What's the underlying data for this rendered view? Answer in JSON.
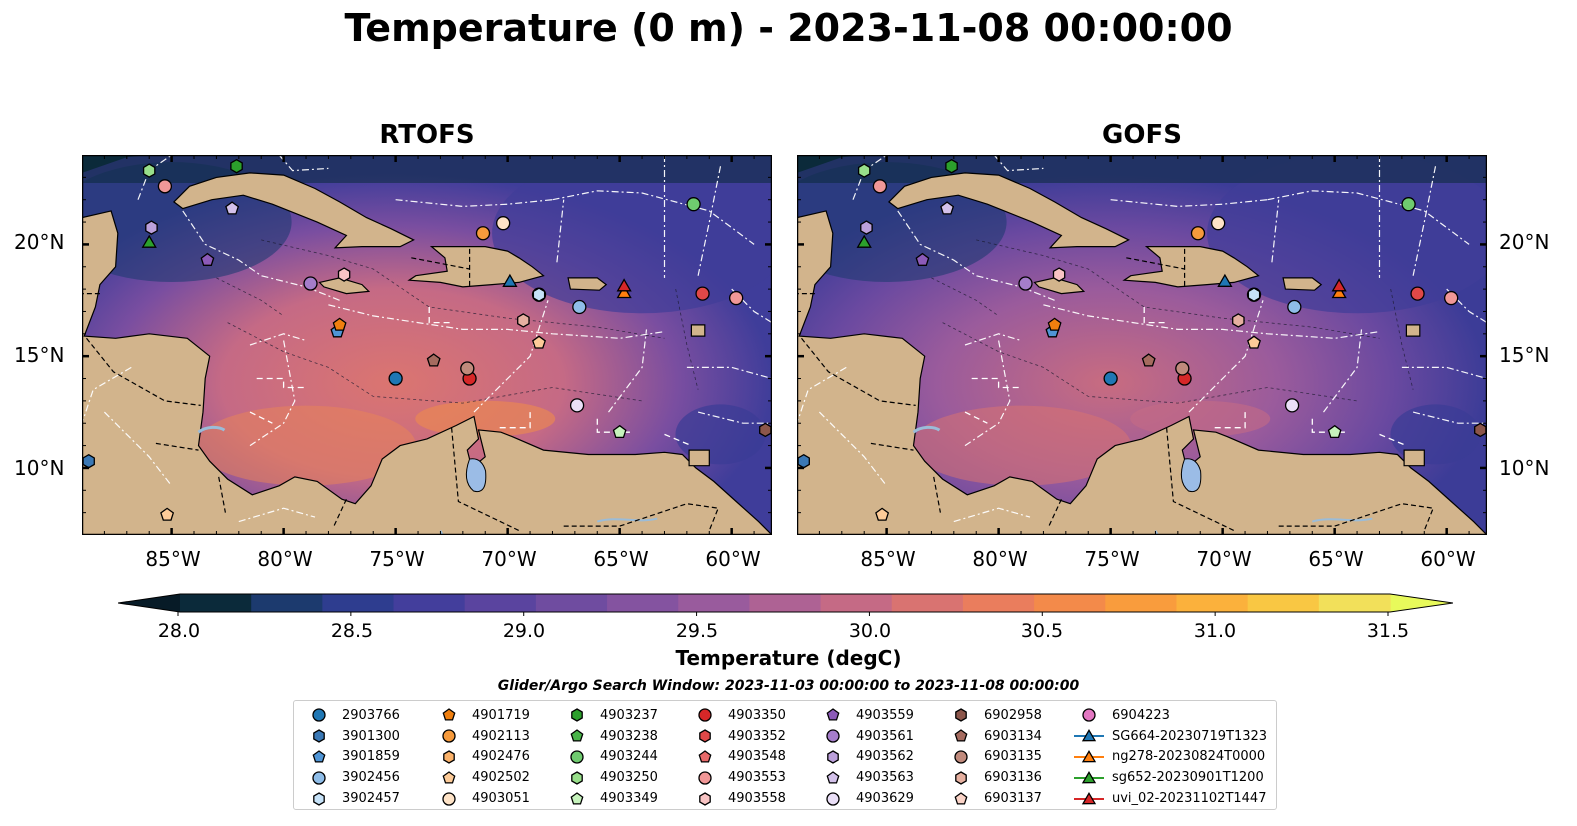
{
  "title": "Temperature (0 m) - 2023-11-08 00:00:00",
  "panels": [
    {
      "title": "RTOFS"
    },
    {
      "title": "GOFS"
    }
  ],
  "axes": {
    "y_ticks": [
      "20°N",
      "15°N",
      "10°N"
    ],
    "x_ticks": [
      "85°W",
      "80°W",
      "75°W",
      "70°W",
      "65°W",
      "60°W"
    ],
    "lon_range": [
      -89,
      -58.2
    ],
    "lat_range": [
      7,
      24
    ]
  },
  "colorbar": {
    "label": "Temperature (degC)",
    "ticks": [
      "28.0",
      "28.5",
      "29.0",
      "29.5",
      "30.0",
      "30.5",
      "31.0",
      "31.5"
    ],
    "range": [
      28.0,
      31.5
    ],
    "colors": [
      "#0b2a3a",
      "#1c3a6e",
      "#2e3d8f",
      "#433e9c",
      "#5a449f",
      "#6f4ca0",
      "#8453a0",
      "#995b9d",
      "#ae6294",
      "#c56a85",
      "#d97371",
      "#ea7d5d",
      "#f38a4a",
      "#f99c3d",
      "#fbb13c",
      "#f9c743",
      "#f2e05a"
    ],
    "under_color": "#071b27",
    "over_color": "#e8fa5b"
  },
  "legend": {
    "window_text": "Glider/Argo Search Window: 2023-11-03 00:00:00 to 2023-11-08 00:00:00",
    "columns": [
      [
        {
          "label": "2903766",
          "marker": "circle",
          "color": "#1f77b4"
        },
        {
          "label": "3901300",
          "marker": "hexagon",
          "color": "#3a78b5"
        },
        {
          "label": "3901859",
          "marker": "pentagon",
          "color": "#4f95d6"
        },
        {
          "label": "3902456",
          "marker": "circle",
          "color": "#8fbde8"
        },
        {
          "label": "3902457",
          "marker": "hexagon",
          "color": "#c6e2f8"
        }
      ],
      [
        {
          "label": "4901719",
          "marker": "pentagon",
          "color": "#f07f0e"
        },
        {
          "label": "4902113",
          "marker": "circle",
          "color": "#f69a3c"
        },
        {
          "label": "4902476",
          "marker": "hexagon",
          "color": "#fbb26a"
        },
        {
          "label": "4902502",
          "marker": "pentagon",
          "color": "#fdcb98"
        },
        {
          "label": "4903051",
          "marker": "circle",
          "color": "#fee3c7"
        }
      ],
      [
        {
          "label": "4903237",
          "marker": "hexagon",
          "color": "#2ca02c"
        },
        {
          "label": "4903238",
          "marker": "pentagon",
          "color": "#49b449"
        },
        {
          "label": "4903244",
          "marker": "circle",
          "color": "#6fcb6f"
        },
        {
          "label": "4903250",
          "marker": "hexagon",
          "color": "#98df8a"
        },
        {
          "label": "4903349",
          "marker": "pentagon",
          "color": "#c6f3bc"
        }
      ],
      [
        {
          "label": "4903350",
          "marker": "circle",
          "color": "#d62728"
        },
        {
          "label": "4903352",
          "marker": "hexagon",
          "color": "#e04848"
        },
        {
          "label": "4903548",
          "marker": "pentagon",
          "color": "#e86a6a"
        },
        {
          "label": "4903553",
          "marker": "circle",
          "color": "#f19797"
        },
        {
          "label": "4903558",
          "marker": "hexagon",
          "color": "#f8c4c4"
        }
      ],
      [
        {
          "label": "4903559",
          "marker": "pentagon",
          "color": "#8c5ab8"
        },
        {
          "label": "4903561",
          "marker": "circle",
          "color": "#a57dca"
        },
        {
          "label": "4903562",
          "marker": "hexagon",
          "color": "#bca0db"
        },
        {
          "label": "4903563",
          "marker": "pentagon",
          "color": "#d3c1ea"
        },
        {
          "label": "4903629",
          "marker": "circle",
          "color": "#eadff7"
        }
      ],
      [
        {
          "label": "6902958",
          "marker": "hexagon",
          "color": "#8c564b"
        },
        {
          "label": "6903134",
          "marker": "pentagon",
          "color": "#a56b5f"
        },
        {
          "label": "6903135",
          "marker": "circle",
          "color": "#c08a7c"
        },
        {
          "label": "6903136",
          "marker": "hexagon",
          "color": "#e6b0a0"
        },
        {
          "label": "6903137",
          "marker": "pentagon",
          "color": "#fbd4c8"
        }
      ],
      [
        {
          "label": "6904223",
          "marker": "circle",
          "color": "#e377c2"
        },
        {
          "label": "SG664-20230719T1323",
          "marker": "triangle",
          "color": "#1f77b4",
          "line": true
        },
        {
          "label": "ng278-20230824T0000",
          "marker": "triangle",
          "color": "#ff7f0e",
          "line": true
        },
        {
          "label": "sg652-20230901T1200",
          "marker": "triangle",
          "color": "#2ca02c",
          "line": true
        },
        {
          "label": "uvi_02-20231102T1447",
          "marker": "triangle",
          "color": "#d62728",
          "line": true
        }
      ]
    ]
  },
  "map_markers": [
    {
      "lon": -75.0,
      "lat": 14.0,
      "marker": "circle",
      "color": "#1f77b4"
    },
    {
      "lon": -88.7,
      "lat": 10.3,
      "marker": "hexagon",
      "color": "#3a78b5"
    },
    {
      "lon": -77.6,
      "lat": 16.1,
      "marker": "pentagon",
      "color": "#4f95d6"
    },
    {
      "lon": -68.6,
      "lat": 17.75,
      "marker": "circle",
      "color": "#8fbde8"
    },
    {
      "lon": -68.6,
      "lat": 17.75,
      "marker": "hexagon",
      "color": "#c6e2f8"
    },
    {
      "lon": -66.8,
      "lat": 17.2,
      "marker": "circle",
      "color": "#8fbde8"
    },
    {
      "lon": -77.5,
      "lat": 16.4,
      "marker": "pentagon",
      "color": "#f07f0e"
    },
    {
      "lon": -71.1,
      "lat": 20.5,
      "marker": "circle",
      "color": "#f69a3c"
    },
    {
      "lon": -70.2,
      "lat": 20.95,
      "marker": "circle",
      "color": "#fee3c7"
    },
    {
      "lon": -85.2,
      "lat": 7.9,
      "marker": "pentagon",
      "color": "#fdcb98"
    },
    {
      "lon": -68.6,
      "lat": 15.6,
      "marker": "pentagon",
      "color": "#fdcb98"
    },
    {
      "lon": -82.1,
      "lat": 23.5,
      "marker": "hexagon",
      "color": "#2ca02c"
    },
    {
      "lon": -61.7,
      "lat": 21.8,
      "marker": "circle",
      "color": "#6fcb6f"
    },
    {
      "lon": -86.0,
      "lat": 23.3,
      "marker": "hexagon",
      "color": "#98df8a"
    },
    {
      "lon": -65.0,
      "lat": 11.6,
      "marker": "pentagon",
      "color": "#c6f3bc"
    },
    {
      "lon": -71.7,
      "lat": 14.0,
      "marker": "circle",
      "color": "#d62728"
    },
    {
      "lon": -61.3,
      "lat": 17.8,
      "marker": "circle",
      "color": "#e04848"
    },
    {
      "lon": -59.8,
      "lat": 17.6,
      "marker": "circle",
      "color": "#f19797"
    },
    {
      "lon": -85.3,
      "lat": 22.6,
      "marker": "circle",
      "color": "#f19797"
    },
    {
      "lon": -77.3,
      "lat": 18.65,
      "marker": "hexagon",
      "color": "#f8c4c4"
    },
    {
      "lon": -83.4,
      "lat": 19.3,
      "marker": "pentagon",
      "color": "#8c5ab8"
    },
    {
      "lon": -78.8,
      "lat": 18.25,
      "marker": "circle",
      "color": "#a57dca"
    },
    {
      "lon": -82.3,
      "lat": 21.6,
      "marker": "pentagon",
      "color": "#d3c1ea"
    },
    {
      "lon": -85.9,
      "lat": 20.75,
      "marker": "hexagon",
      "color": "#bca0db"
    },
    {
      "lon": -66.9,
      "lat": 12.8,
      "marker": "circle",
      "color": "#eadff7"
    },
    {
      "lon": -58.5,
      "lat": 11.7,
      "marker": "hexagon",
      "color": "#8c564b"
    },
    {
      "lon": -73.3,
      "lat": 14.8,
      "marker": "pentagon",
      "color": "#a56b5f"
    },
    {
      "lon": -71.8,
      "lat": 14.45,
      "marker": "circle",
      "color": "#c08a7c"
    },
    {
      "lon": -69.3,
      "lat": 16.6,
      "marker": "hexagon",
      "color": "#e6b0a0"
    },
    {
      "lon": -69.9,
      "lat": 18.35,
      "marker": "triangle",
      "color": "#1f77b4"
    },
    {
      "lon": -64.8,
      "lat": 17.85,
      "marker": "triangle",
      "color": "#ff7f0e"
    },
    {
      "lon": -86.0,
      "lat": 20.1,
      "marker": "triangle",
      "color": "#2ca02c"
    },
    {
      "lon": -64.8,
      "lat": 18.15,
      "marker": "triangle",
      "color": "#d62728"
    }
  ]
}
